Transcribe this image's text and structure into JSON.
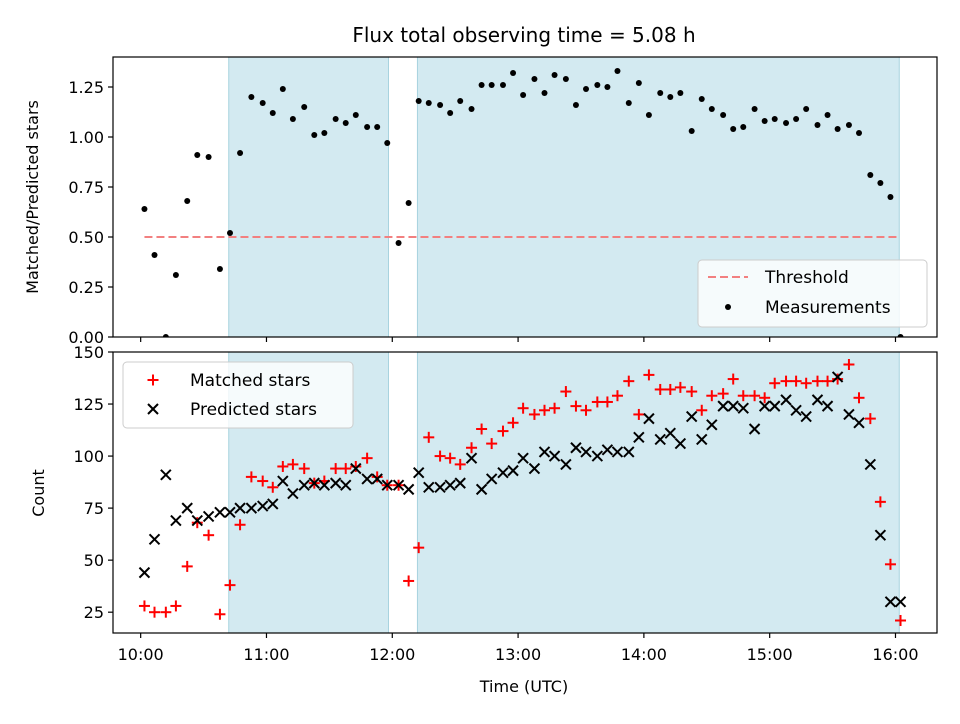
{
  "title": "Flux total observing time = 5.08 h",
  "colors": {
    "band": "#d3eaf1",
    "band_edge": "#a8d3df",
    "threshold": "#f28080",
    "matched": "#ff0000",
    "predicted": "#000000",
    "measurement": "#000000"
  },
  "chart_data": [
    {
      "type": "scatter",
      "panel": "top",
      "ylabel": "Matched/Predicted stars",
      "xlabel": "",
      "x_unit": "hours UTC",
      "xlim": [
        9.78,
        16.33
      ],
      "ylim": [
        0.0,
        1.4
      ],
      "yticks": [
        "0.00",
        "0.25",
        "0.50",
        "0.75",
        "1.00",
        "1.25"
      ],
      "ytick_values": [
        0.0,
        0.25,
        0.5,
        0.75,
        1.0,
        1.25
      ],
      "shaded_intervals": [
        [
          10.7,
          11.97
        ],
        [
          12.2,
          16.03
        ]
      ],
      "legend_position": "lower right",
      "threshold": {
        "name": "Threshold",
        "value": 0.5,
        "x_range": [
          10.03,
          16.03
        ],
        "style": "dashed"
      },
      "series": [
        {
          "name": "Measurements",
          "marker": "dot",
          "x": [
            10.03,
            10.11,
            10.2,
            10.28,
            10.37,
            10.45,
            10.54,
            10.63,
            10.71,
            10.79,
            10.88,
            10.97,
            11.05,
            11.13,
            11.21,
            11.3,
            11.38,
            11.46,
            11.55,
            11.63,
            11.71,
            11.8,
            11.88,
            11.96,
            12.05,
            12.13,
            12.21,
            12.29,
            12.38,
            12.46,
            12.54,
            12.63,
            12.71,
            12.79,
            12.88,
            12.96,
            13.04,
            13.13,
            13.21,
            13.29,
            13.38,
            13.46,
            13.54,
            13.63,
            13.71,
            13.79,
            13.88,
            13.96,
            14.04,
            14.13,
            14.21,
            14.29,
            14.38,
            14.46,
            14.54,
            14.63,
            14.71,
            14.79,
            14.88,
            14.96,
            15.04,
            15.13,
            15.21,
            15.29,
            15.38,
            15.46,
            15.54,
            15.63,
            15.71,
            15.8,
            15.88,
            15.96,
            16.04
          ],
          "y": [
            0.64,
            0.41,
            0.0,
            0.31,
            0.68,
            0.91,
            0.9,
            0.34,
            0.52,
            0.92,
            1.2,
            1.17,
            1.12,
            1.24,
            1.09,
            1.15,
            1.01,
            1.02,
            1.09,
            1.07,
            1.11,
            1.05,
            1.05,
            0.97,
            0.47,
            0.67,
            1.18,
            1.17,
            1.16,
            1.12,
            1.18,
            1.14,
            1.26,
            1.26,
            1.26,
            1.32,
            1.21,
            1.29,
            1.22,
            1.31,
            1.29,
            1.16,
            1.24,
            1.26,
            1.25,
            1.33,
            1.17,
            1.27,
            1.11,
            1.22,
            1.2,
            1.22,
            1.03,
            1.19,
            1.14,
            1.11,
            1.04,
            1.05,
            1.14,
            1.08,
            1.09,
            1.07,
            1.09,
            1.14,
            1.06,
            1.11,
            1.04,
            1.06,
            1.02,
            0.81,
            0.77,
            0.7,
            0.0
          ]
        }
      ]
    },
    {
      "type": "scatter",
      "panel": "bottom",
      "ylabel": "Count",
      "xlabel": "Time (UTC)",
      "x_unit": "hours UTC",
      "xlim": [
        9.78,
        16.33
      ],
      "ylim": [
        15,
        150
      ],
      "yticks": [
        "25",
        "50",
        "75",
        "100",
        "125",
        "150"
      ],
      "ytick_values": [
        25,
        50,
        75,
        100,
        125,
        150
      ],
      "xticks": [
        "10:00",
        "11:00",
        "12:00",
        "13:00",
        "14:00",
        "15:00",
        "16:00"
      ],
      "xtick_values": [
        10,
        11,
        12,
        13,
        14,
        15,
        16
      ],
      "shaded_intervals": [
        [
          10.7,
          11.97
        ],
        [
          12.2,
          16.03
        ]
      ],
      "legend_position": "upper left",
      "series": [
        {
          "name": "Matched stars",
          "marker": "plus",
          "x": [
            10.03,
            10.11,
            10.2,
            10.28,
            10.37,
            10.45,
            10.54,
            10.63,
            10.71,
            10.79,
            10.88,
            10.97,
            11.05,
            11.13,
            11.21,
            11.3,
            11.38,
            11.46,
            11.55,
            11.63,
            11.71,
            11.8,
            11.88,
            11.96,
            12.05,
            12.13,
            12.21,
            12.29,
            12.38,
            12.46,
            12.54,
            12.63,
            12.71,
            12.79,
            12.88,
            12.96,
            13.04,
            13.13,
            13.21,
            13.29,
            13.38,
            13.46,
            13.54,
            13.63,
            13.71,
            13.79,
            13.88,
            13.96,
            14.04,
            14.13,
            14.21,
            14.29,
            14.38,
            14.46,
            14.54,
            14.63,
            14.71,
            14.79,
            14.88,
            14.96,
            15.04,
            15.13,
            15.21,
            15.29,
            15.38,
            15.46,
            15.54,
            15.63,
            15.71,
            15.8,
            15.88,
            15.96,
            16.04
          ],
          "y": [
            28,
            25,
            25,
            28,
            47,
            68,
            62,
            24,
            38,
            67,
            90,
            88,
            85,
            95,
            96,
            94,
            87,
            88,
            94,
            94,
            95,
            99,
            90,
            86,
            86,
            40,
            56,
            109,
            100,
            99,
            96,
            104,
            113,
            106,
            112,
            116,
            123,
            120,
            122,
            123,
            131,
            124,
            122,
            126,
            126,
            129,
            136,
            120,
            139,
            132,
            132,
            133,
            131,
            122,
            129,
            130,
            137,
            129,
            129,
            128,
            135,
            136,
            136,
            135,
            136,
            136,
            137,
            144,
            128,
            118,
            78,
            48,
            21
          ]
        },
        {
          "name": "Predicted stars",
          "marker": "x",
          "x": [
            10.03,
            10.11,
            10.2,
            10.28,
            10.37,
            10.45,
            10.54,
            10.63,
            10.71,
            10.79,
            10.88,
            10.97,
            11.05,
            11.13,
            11.21,
            11.3,
            11.38,
            11.46,
            11.55,
            11.63,
            11.71,
            11.8,
            11.88,
            11.96,
            12.05,
            12.13,
            12.21,
            12.29,
            12.38,
            12.46,
            12.54,
            12.63,
            12.71,
            12.79,
            12.88,
            12.96,
            13.04,
            13.13,
            13.21,
            13.29,
            13.38,
            13.46,
            13.54,
            13.63,
            13.71,
            13.79,
            13.88,
            13.96,
            14.04,
            14.13,
            14.21,
            14.29,
            14.38,
            14.46,
            14.54,
            14.63,
            14.71,
            14.79,
            14.88,
            14.96,
            15.04,
            15.13,
            15.21,
            15.29,
            15.38,
            15.46,
            15.54,
            15.63,
            15.71,
            15.8,
            15.88,
            15.96,
            16.04
          ],
          "y": [
            44,
            60,
            91,
            69,
            75,
            69,
            71,
            73,
            73,
            75,
            75,
            76,
            77,
            88,
            82,
            86,
            87,
            86,
            87,
            86,
            94,
            89,
            89,
            86,
            86,
            84,
            92,
            85,
            85,
            86,
            87,
            99,
            84,
            89,
            92,
            93,
            99,
            94,
            102,
            100,
            96,
            104,
            102,
            100,
            103,
            102,
            102,
            109,
            118,
            108,
            111,
            106,
            119,
            108,
            115,
            124,
            124,
            123,
            113,
            124,
            124,
            127,
            122,
            119,
            127,
            124,
            138,
            120,
            116,
            96,
            62,
            30,
            30
          ]
        }
      ]
    }
  ]
}
